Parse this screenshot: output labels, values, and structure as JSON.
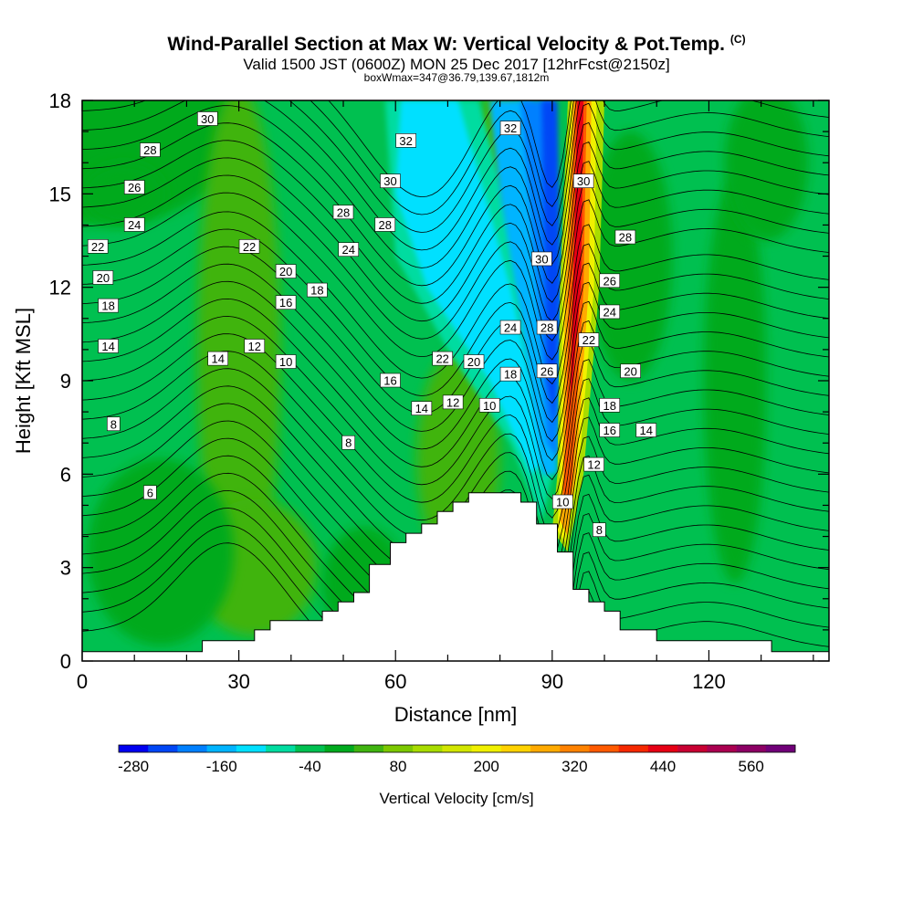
{
  "title": {
    "line1": "Wind-Parallel Section at Max W: Vertical Velocity & Pot.Temp.",
    "copyright": "(C)",
    "line2": "Valid 1500 JST (0600Z) MON 25 Dec 2017 [12hrFcst@2150z]",
    "line3": "boxWmax=347@36.79,139.67,1812m"
  },
  "chart_data": {
    "type": "heatmap",
    "xlabel": "Distance [nm]",
    "ylabel": "Height [Kft MSL]",
    "xlim": [
      0,
      143
    ],
    "ylim": [
      0,
      18
    ],
    "x_major_ticks": [
      0,
      30,
      60,
      90,
      120
    ],
    "x_minor_step": 10,
    "y_major_ticks": [
      0,
      3,
      6,
      9,
      12,
      15,
      18
    ],
    "y_minor_step": 1,
    "colorbar": {
      "label": "Vertical Velocity [cm/s]",
      "levels": [
        -280,
        -240,
        -200,
        -160,
        -120,
        -80,
        -40,
        0,
        40,
        80,
        120,
        160,
        200,
        240,
        280,
        320,
        360,
        400,
        440,
        480,
        520,
        560,
        600
      ],
      "tick_labels": [
        "-280",
        "-160",
        "-40",
        "80",
        "200",
        "320",
        "440",
        "560"
      ],
      "colors": [
        "#0000f0",
        "#0046f5",
        "#0080ff",
        "#00b4ff",
        "#00e0ff",
        "#00dca0",
        "#00c050",
        "#00aa1e",
        "#40b410",
        "#7cc800",
        "#a8dc00",
        "#d2e600",
        "#f0f000",
        "#ffd200",
        "#ffaa00",
        "#ff8200",
        "#ff5a00",
        "#f52800",
        "#e60014",
        "#c80032",
        "#aa0050",
        "#8c0064",
        "#700078"
      ]
    },
    "terrain_profile_kft": [
      {
        "x": 0,
        "y": 0.3
      },
      {
        "x": 23,
        "y": 0.3
      },
      {
        "x": 23,
        "y": 0.65
      },
      {
        "x": 33,
        "y": 0.65
      },
      {
        "x": 33,
        "y": 1.0
      },
      {
        "x": 36,
        "y": 1.0
      },
      {
        "x": 36,
        "y": 1.3
      },
      {
        "x": 46,
        "y": 1.3
      },
      {
        "x": 46,
        "y": 1.6
      },
      {
        "x": 49,
        "y": 1.6
      },
      {
        "x": 49,
        "y": 1.9
      },
      {
        "x": 52,
        "y": 1.9
      },
      {
        "x": 52,
        "y": 2.2
      },
      {
        "x": 55,
        "y": 2.2
      },
      {
        "x": 55,
        "y": 3.1
      },
      {
        "x": 59,
        "y": 3.1
      },
      {
        "x": 59,
        "y": 3.8
      },
      {
        "x": 62,
        "y": 3.8
      },
      {
        "x": 62,
        "y": 4.1
      },
      {
        "x": 65,
        "y": 4.1
      },
      {
        "x": 65,
        "y": 4.4
      },
      {
        "x": 68,
        "y": 4.4
      },
      {
        "x": 68,
        "y": 4.8
      },
      {
        "x": 71,
        "y": 4.8
      },
      {
        "x": 71,
        "y": 5.1
      },
      {
        "x": 74,
        "y": 5.1
      },
      {
        "x": 74,
        "y": 5.4
      },
      {
        "x": 84,
        "y": 5.4
      },
      {
        "x": 84,
        "y": 5.1
      },
      {
        "x": 87,
        "y": 5.1
      },
      {
        "x": 87,
        "y": 4.4
      },
      {
        "x": 91,
        "y": 4.4
      },
      {
        "x": 91,
        "y": 3.5
      },
      {
        "x": 94,
        "y": 3.5
      },
      {
        "x": 94,
        "y": 2.3
      },
      {
        "x": 97,
        "y": 2.3
      },
      {
        "x": 97,
        "y": 1.9
      },
      {
        "x": 100,
        "y": 1.9
      },
      {
        "x": 100,
        "y": 1.6
      },
      {
        "x": 103,
        "y": 1.6
      },
      {
        "x": 103,
        "y": 1.0
      },
      {
        "x": 110,
        "y": 1.0
      },
      {
        "x": 110,
        "y": 0.65
      },
      {
        "x": 132,
        "y": 0.65
      },
      {
        "x": 132,
        "y": 0.3
      },
      {
        "x": 143,
        "y": 0.3
      }
    ],
    "theta_contour_labels": [
      {
        "t": "30",
        "x": 24,
        "y": 17.4
      },
      {
        "t": "28",
        "x": 13,
        "y": 16.4
      },
      {
        "t": "26",
        "x": 10,
        "y": 15.2
      },
      {
        "t": "24",
        "x": 10,
        "y": 14.0
      },
      {
        "t": "22",
        "x": 3,
        "y": 13.3
      },
      {
        "t": "20",
        "x": 4,
        "y": 12.3
      },
      {
        "t": "18",
        "x": 5,
        "y": 11.4
      },
      {
        "t": "14",
        "x": 5,
        "y": 10.1
      },
      {
        "t": "8",
        "x": 6,
        "y": 7.6
      },
      {
        "t": "6",
        "x": 13,
        "y": 5.4
      },
      {
        "t": "22",
        "x": 32,
        "y": 13.3
      },
      {
        "t": "20",
        "x": 39,
        "y": 12.5
      },
      {
        "t": "16",
        "x": 39,
        "y": 11.5
      },
      {
        "t": "18",
        "x": 45,
        "y": 11.9
      },
      {
        "t": "12",
        "x": 33,
        "y": 10.1
      },
      {
        "t": "14",
        "x": 26,
        "y": 9.7
      },
      {
        "t": "10",
        "x": 39,
        "y": 9.6
      },
      {
        "t": "8",
        "x": 51,
        "y": 7.0
      },
      {
        "t": "32",
        "x": 62,
        "y": 16.7
      },
      {
        "t": "30",
        "x": 59,
        "y": 15.4
      },
      {
        "t": "28",
        "x": 50,
        "y": 14.4
      },
      {
        "t": "28",
        "x": 58,
        "y": 14.0
      },
      {
        "t": "24",
        "x": 51,
        "y": 13.2
      },
      {
        "t": "16",
        "x": 59,
        "y": 9.0
      },
      {
        "t": "22",
        "x": 69,
        "y": 9.7
      },
      {
        "t": "20",
        "x": 75,
        "y": 9.6
      },
      {
        "t": "18",
        "x": 82,
        "y": 9.2
      },
      {
        "t": "14",
        "x": 65,
        "y": 8.1
      },
      {
        "t": "12",
        "x": 71,
        "y": 8.3
      },
      {
        "t": "10",
        "x": 78,
        "y": 8.2
      },
      {
        "t": "32",
        "x": 82,
        "y": 17.1
      },
      {
        "t": "24",
        "x": 82,
        "y": 10.7
      },
      {
        "t": "28",
        "x": 89,
        "y": 10.7
      },
      {
        "t": "30",
        "x": 88,
        "y": 12.9
      },
      {
        "t": "26",
        "x": 89,
        "y": 9.3
      },
      {
        "t": "30",
        "x": 96,
        "y": 15.4
      },
      {
        "t": "28",
        "x": 104,
        "y": 13.6
      },
      {
        "t": "26",
        "x": 101,
        "y": 12.2
      },
      {
        "t": "24",
        "x": 101,
        "y": 11.2
      },
      {
        "t": "22",
        "x": 97,
        "y": 10.3
      },
      {
        "t": "20",
        "x": 105,
        "y": 9.3
      },
      {
        "t": "18",
        "x": 101,
        "y": 8.2
      },
      {
        "t": "16",
        "x": 101,
        "y": 7.4
      },
      {
        "t": "14",
        "x": 108,
        "y": 7.4
      },
      {
        "t": "12",
        "x": 98,
        "y": 6.3
      },
      {
        "t": "10",
        "x": 92,
        "y": 5.1
      },
      {
        "t": "8",
        "x": 99,
        "y": 4.2
      }
    ]
  }
}
